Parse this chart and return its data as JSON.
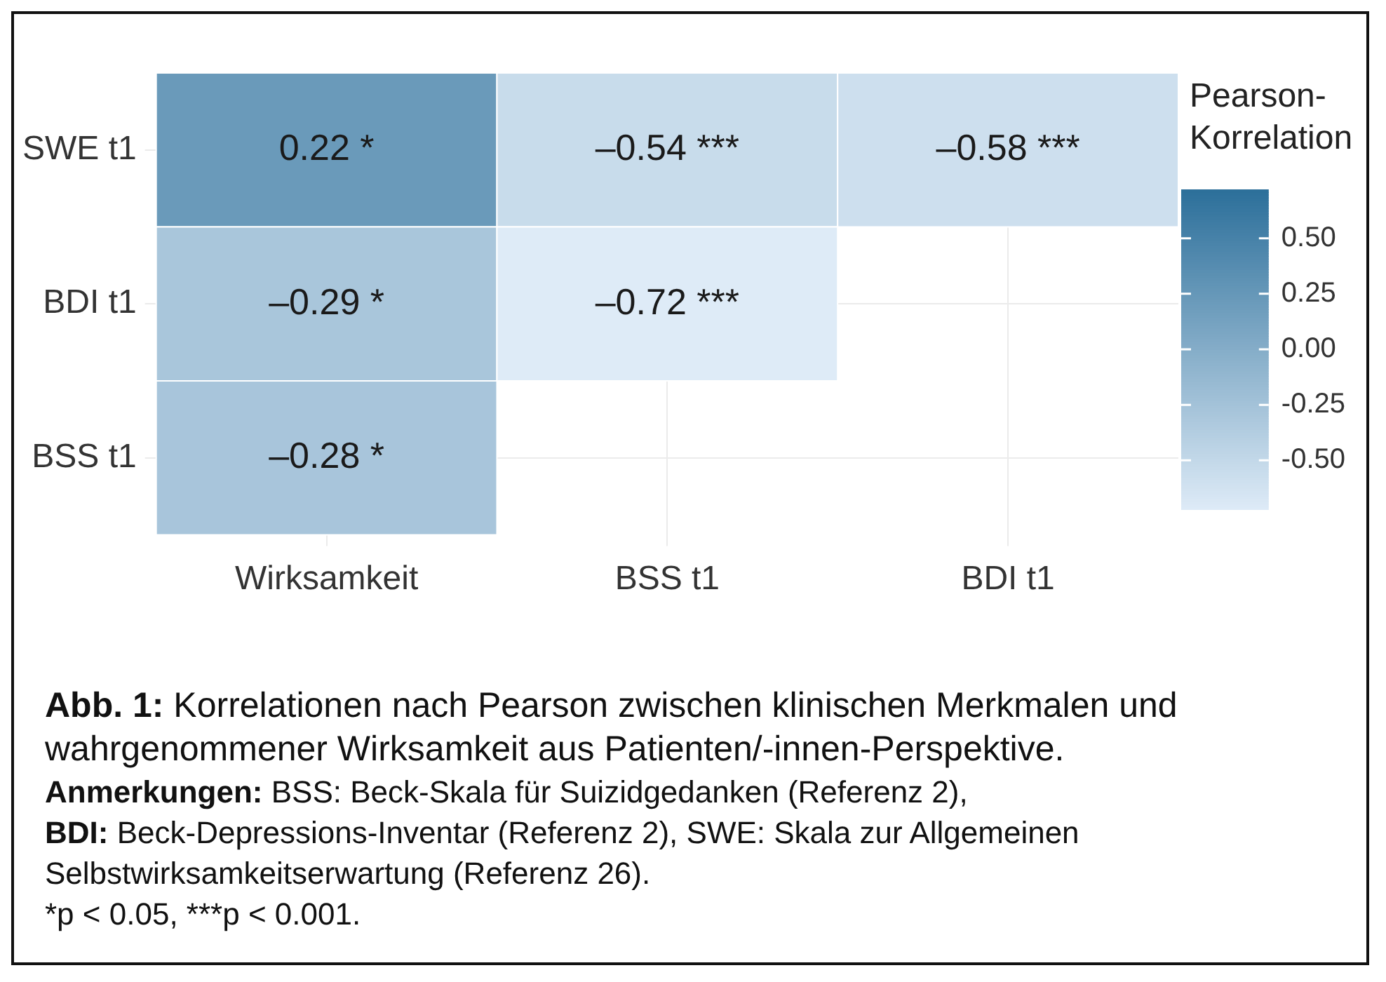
{
  "chart_data": {
    "type": "heatmap",
    "categories": [
      "Wirksamkeit",
      "BSS t1",
      "BDI t1"
    ],
    "y_categories": [
      "SWE t1",
      "BDI t1",
      "BSS t1"
    ],
    "cells": [
      [
        0.22,
        -0.54,
        -0.58
      ],
      [
        -0.29,
        -0.72,
        null
      ],
      [
        -0.28,
        null,
        null
      ]
    ],
    "cell_labels": [
      [
        "0.22 *",
        "–0.54 ***",
        "–0.58 ***"
      ],
      [
        "–0.29 *",
        "–0.72 ***",
        null
      ],
      [
        "–0.28 *",
        null,
        null
      ]
    ],
    "clabel": "Pearson-Korrelation",
    "clim": [
      -0.72,
      0.72
    ],
    "cticks": [
      {
        "value": 0.5,
        "label": "0.50"
      },
      {
        "value": 0.25,
        "label": "0.25"
      },
      {
        "value": 0,
        "label": "0.00"
      },
      {
        "value": -0.25,
        "label": "-0.25"
      },
      {
        "value": -0.5,
        "label": "-0.50"
      }
    ],
    "grid": true,
    "annotations": [
      "Abb. 1: Korrelationen nach Pearson zwischen klinischen Merkmalen und wahrgenommener Wirksamkeit aus Patienten/-innen-Perspektive.",
      "Anmerkungen: BSS: Beck-Skala für Suizidgedanken (Referenz 2),",
      "BDI: Beck-Depressions-Inventar (Referenz 2), SWE: Skala zur Allgemeinen Selbstwirksamkeitserwartung (Referenz 26).",
      "*p < 0.05, ***p < 0.001."
    ]
  }
}
